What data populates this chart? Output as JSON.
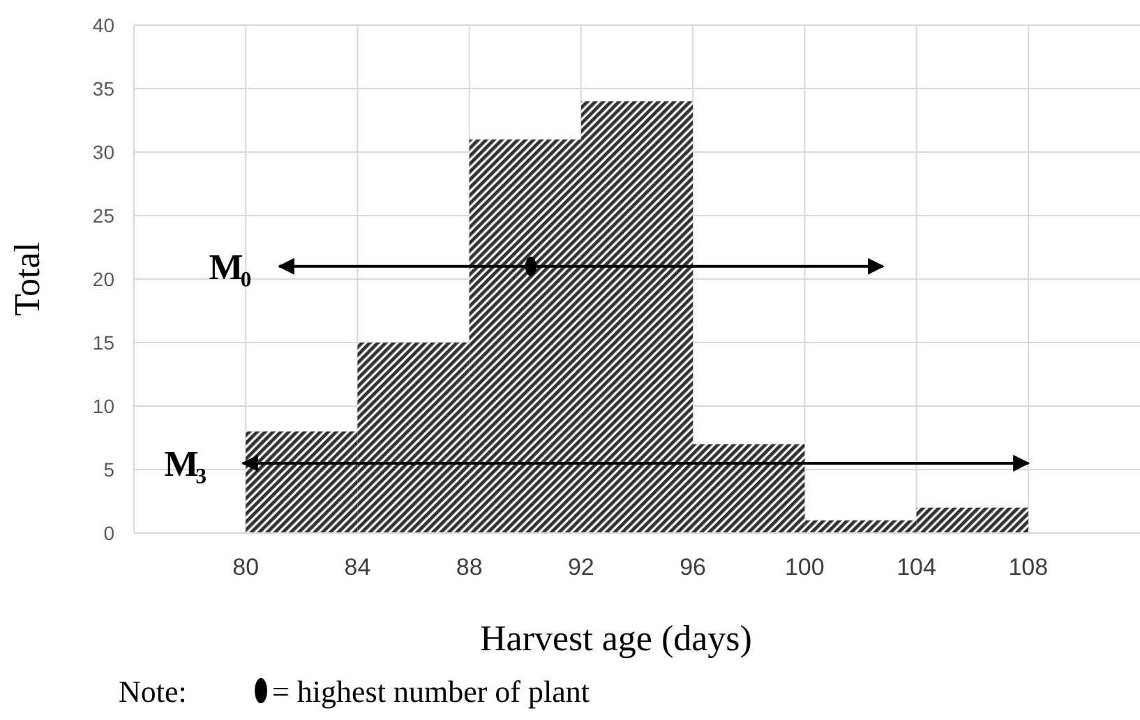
{
  "chart_data": {
    "type": "histogram",
    "xlabel": "Harvest age (days)",
    "ylabel": "Total",
    "bins": [
      80,
      84,
      88,
      92,
      96,
      100,
      104,
      108
    ],
    "values": [
      8,
      15,
      31,
      34,
      7,
      1,
      2
    ],
    "color": "#333333",
    "xlim": [
      76,
      112
    ],
    "xticks": [
      80,
      84,
      88,
      92,
      96,
      100,
      104,
      108
    ],
    "ylim": [
      0,
      40
    ],
    "yticks": [
      0,
      5,
      10,
      15,
      20,
      25,
      30,
      35,
      40
    ],
    "grid": true,
    "series": [
      {
        "type": "line",
        "color": "#000000",
        "x": [
          81.2,
          102.8
        ],
        "values": [
          21,
          21
        ],
        "line_style": "solid"
      },
      {
        "type": "line",
        "color": "#000000",
        "x": [
          79.9,
          108
        ],
        "values": [
          5.5,
          5.5
        ],
        "line_style": "solid"
      },
      {
        "type": "scatter",
        "color": "#000000",
        "x": [
          90.2
        ],
        "values": [
          21
        ],
        "marker": "circle"
      }
    ],
    "annotations": [
      "M₀",
      "M₃",
      "Note:     = highest number of plant"
    ]
  }
}
